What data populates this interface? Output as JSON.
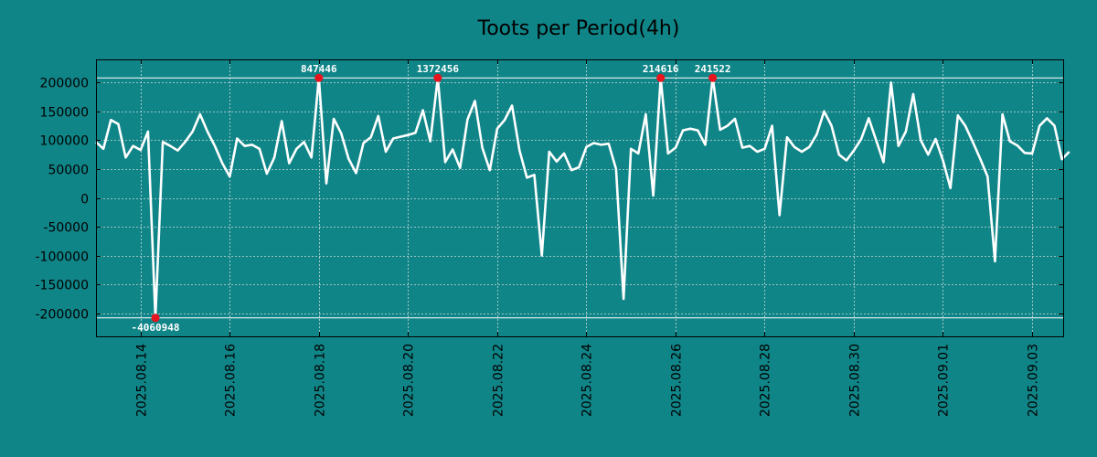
{
  "chart_data": {
    "type": "line",
    "title": "Toots per Period(4h)",
    "xlabel": "",
    "ylabel": "",
    "ylim": [
      -240000,
      240000
    ],
    "x_start": "2025.08.13 12:00",
    "x_step_days": 0.1667,
    "y_ticks": [
      200000,
      150000,
      100000,
      50000,
      0,
      -50000,
      -100000,
      -150000,
      -200000
    ],
    "y_tick_labels": [
      "200000",
      "150000",
      "100000",
      "50000",
      "0",
      "-50000",
      "-100000",
      "-150000",
      "-200000"
    ],
    "x_ticks_days": [
      1,
      3,
      5,
      7,
      9,
      11,
      13,
      15,
      17,
      19,
      21
    ],
    "x_tick_labels": [
      "2025.08.14",
      "2025.08.16",
      "2025.08.18",
      "2025.08.20",
      "2025.08.22",
      "2025.08.24",
      "2025.08.26",
      "2025.08.28",
      "2025.08.30",
      "2025.09.01",
      "2025.09.03"
    ],
    "clip_high": 208000,
    "clip_low": -208000,
    "grid": true,
    "series": [
      {
        "name": "toots",
        "color": "#ffffff",
        "values": [
          97000,
          85000,
          135000,
          128000,
          70000,
          90000,
          83000,
          115000,
          -208000,
          97000,
          90000,
          82000,
          97000,
          115000,
          145000,
          115000,
          90000,
          60000,
          37000,
          103000,
          90000,
          92000,
          85000,
          42000,
          70000,
          133000,
          60000,
          85000,
          97000,
          70000,
          208000,
          25000,
          137000,
          112000,
          68000,
          43000,
          95000,
          105000,
          142000,
          80000,
          103000,
          106000,
          109000,
          113000,
          152000,
          98000,
          208000,
          62000,
          84000,
          52000,
          136000,
          168000,
          87000,
          48000,
          120000,
          135000,
          160000,
          82000,
          35000,
          40000,
          -100000,
          80000,
          63000,
          77000,
          48000,
          53000,
          88000,
          95000,
          92000,
          94000,
          50000,
          -175000,
          85000,
          77000,
          145000,
          4000,
          208000,
          77000,
          87000,
          117000,
          120000,
          117000,
          92000,
          208000,
          118000,
          125000,
          137000,
          87000,
          90000,
          80000,
          85000,
          125000,
          -30000,
          105000,
          88000,
          80000,
          88000,
          110000,
          150000,
          125000,
          75000,
          65000,
          82000,
          102000,
          138000,
          100000,
          62000,
          200000,
          90000,
          115000,
          180000,
          100000,
          75000,
          102000,
          65000,
          17000,
          143000,
          125000,
          97000,
          68000,
          37000,
          -110000,
          145000,
          98000,
          91000,
          78000,
          77000,
          125000,
          138000,
          125000,
          67000,
          80000
        ]
      }
    ],
    "annotations": [
      {
        "index": 8,
        "label": "-4060948",
        "position": "below"
      },
      {
        "index": 30,
        "label": "847446",
        "position": "above"
      },
      {
        "index": 46,
        "label": "1372456",
        "position": "above"
      },
      {
        "index": 76,
        "label": "214616",
        "position": "above"
      },
      {
        "index": 83,
        "label": "241522",
        "position": "above"
      }
    ]
  }
}
